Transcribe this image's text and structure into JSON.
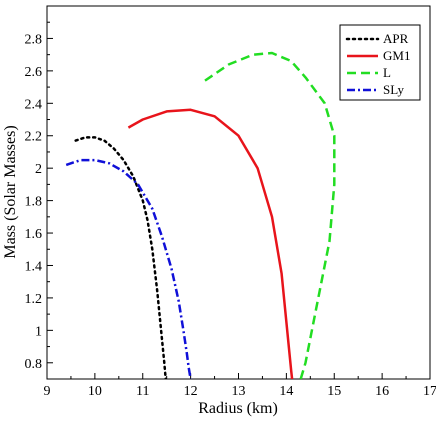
{
  "chart_data": {
    "type": "line",
    "title": "",
    "xlabel": "Radius (km)",
    "ylabel": "Mass (Solar Masses)",
    "xlim": [
      9,
      17
    ],
    "ylim": [
      0.7,
      3.0
    ],
    "x_ticks": [
      9,
      10,
      11,
      12,
      13,
      14,
      15,
      16,
      17
    ],
    "y_ticks": [
      0.8,
      1,
      1.2,
      1.4,
      1.6,
      1.8,
      2,
      2.2,
      2.4,
      2.6,
      2.8
    ],
    "grid": false,
    "legend_position": "top-right",
    "series": [
      {
        "name": "APR",
        "color": "#000000",
        "style": "dotted",
        "x": [
          9.6,
          9.8,
          10.0,
          10.2,
          10.4,
          10.6,
          10.8,
          11.0,
          11.1,
          11.2,
          11.3,
          11.35,
          11.4,
          11.45,
          11.48
        ],
        "y": [
          2.17,
          2.19,
          2.19,
          2.17,
          2.12,
          2.05,
          1.95,
          1.8,
          1.68,
          1.5,
          1.25,
          1.1,
          0.95,
          0.8,
          0.7
        ]
      },
      {
        "name": "GM1",
        "color": "#e8141b",
        "style": "solid",
        "x": [
          10.7,
          11.0,
          11.5,
          12.0,
          12.5,
          13.0,
          13.4,
          13.7,
          13.9,
          14.0,
          14.05,
          14.1,
          14.12
        ],
        "y": [
          2.25,
          2.3,
          2.35,
          2.36,
          2.32,
          2.2,
          2.0,
          1.7,
          1.35,
          1.05,
          0.9,
          0.75,
          0.7
        ]
      },
      {
        "name": "L",
        "color": "#22dd22",
        "style": "dashed",
        "x": [
          12.3,
          12.8,
          13.3,
          13.7,
          14.1,
          14.4,
          14.8,
          15.0,
          15.0,
          14.9,
          14.6,
          14.4,
          14.3
        ],
        "y": [
          2.54,
          2.64,
          2.7,
          2.71,
          2.66,
          2.56,
          2.4,
          2.2,
          1.9,
          1.55,
          1.1,
          0.8,
          0.7
        ]
      },
      {
        "name": "SLy",
        "color": "#1010d8",
        "style": "dashdot",
        "x": [
          9.4,
          9.7,
          10.0,
          10.3,
          10.6,
          10.9,
          11.2,
          11.4,
          11.6,
          11.75,
          11.85,
          11.92,
          11.96,
          12.0
        ],
        "y": [
          2.02,
          2.05,
          2.05,
          2.03,
          1.98,
          1.9,
          1.75,
          1.58,
          1.38,
          1.18,
          1.0,
          0.86,
          0.77,
          0.7
        ]
      }
    ]
  }
}
